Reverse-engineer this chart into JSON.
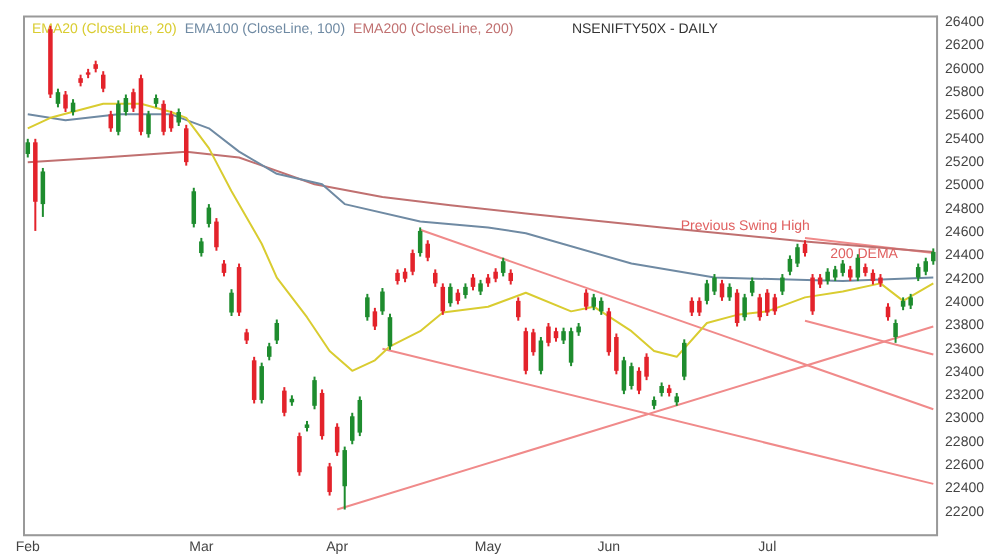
{
  "chart_data": {
    "type": "candlestick",
    "title": "NSENIFTY50X - DAILY",
    "legend": "top left",
    "grid": false,
    "categories": [
      "Feb",
      null,
      null,
      null,
      null,
      null,
      null,
      null,
      null,
      null,
      null,
      null,
      null,
      null,
      null,
      null,
      null,
      null,
      null,
      null,
      null,
      null,
      null,
      "Mar",
      null,
      null,
      null,
      null,
      null,
      null,
      null,
      null,
      null,
      null,
      null,
      null,
      null,
      null,
      null,
      null,
      null,
      "Apr",
      null,
      null,
      null,
      null,
      null,
      null,
      null,
      null,
      null,
      null,
      null,
      null,
      null,
      null,
      null,
      null,
      null,
      null,
      null,
      "May",
      null,
      null,
      null,
      null,
      null,
      null,
      null,
      null,
      null,
      null,
      null,
      null,
      null,
      null,
      null,
      "Jun",
      null,
      null,
      null,
      null,
      null,
      null,
      null,
      null,
      null,
      null,
      null,
      null,
      null,
      null,
      null,
      null,
      null,
      null,
      null,
      null,
      "Jul",
      null,
      null,
      null,
      null,
      null,
      null,
      null,
      null,
      null,
      null,
      null,
      null,
      null,
      null,
      null,
      null,
      null,
      null,
      null,
      null,
      null,
      null
    ],
    "ylim": [
      22000,
      26450
    ],
    "yticks": [
      22200,
      22400,
      22600,
      22800,
      23000,
      23200,
      23400,
      23600,
      23800,
      24000,
      24200,
      24400,
      24600,
      24800,
      25000,
      25200,
      25400,
      25600,
      25800,
      26000,
      26200,
      26400
    ],
    "ohlc": [
      [
        25270,
        25400,
        25240,
        25370
      ],
      [
        25370,
        25400,
        24610,
        24860
      ],
      [
        24840,
        25150,
        24730,
        25120
      ],
      [
        26340,
        26370,
        25750,
        25780
      ],
      [
        25700,
        25830,
        25670,
        25800
      ],
      [
        25780,
        25810,
        25630,
        25660
      ],
      [
        25630,
        25740,
        25600,
        25710
      ],
      [
        25920,
        25950,
        25850,
        25880
      ],
      [
        25970,
        26000,
        25920,
        25950
      ],
      [
        26040,
        26070,
        25970,
        26000
      ],
      [
        25950,
        25980,
        25800,
        25830
      ],
      [
        25610,
        25640,
        25460,
        25490
      ],
      [
        25460,
        25730,
        25430,
        25700
      ],
      [
        25630,
        25780,
        25600,
        25750
      ],
      [
        25800,
        25830,
        25630,
        25660
      ],
      [
        25920,
        25950,
        25430,
        25460
      ],
      [
        25440,
        25640,
        25410,
        25610
      ],
      [
        25700,
        25780,
        25670,
        25750
      ],
      [
        25700,
        25730,
        25430,
        25460
      ],
      [
        25610,
        25640,
        25460,
        25490
      ],
      [
        25540,
        25660,
        25510,
        25630
      ],
      [
        25490,
        25520,
        25170,
        25200
      ],
      [
        24670,
        24980,
        24640,
        24950
      ],
      [
        24420,
        24550,
        24390,
        24520
      ],
      [
        24670,
        24840,
        24640,
        24810
      ],
      [
        24690,
        24720,
        24440,
        24470
      ],
      [
        24330,
        24360,
        24220,
        24250
      ],
      [
        23910,
        24110,
        23880,
        24080
      ],
      [
        24300,
        24330,
        23880,
        23910
      ],
      [
        23740,
        23770,
        23640,
        23670
      ],
      [
        23500,
        23530,
        23130,
        23160
      ],
      [
        23160,
        23480,
        23130,
        23450
      ],
      [
        23530,
        23650,
        23500,
        23620
      ],
      [
        23670,
        23850,
        23640,
        23820
      ],
      [
        23240,
        23270,
        23020,
        23050
      ],
      [
        23140,
        23200,
        23110,
        23170
      ],
      [
        22850,
        22880,
        22510,
        22540
      ],
      [
        22920,
        22980,
        22890,
        22950
      ],
      [
        23110,
        23360,
        23080,
        23330
      ],
      [
        23220,
        23250,
        22820,
        22850
      ],
      [
        22590,
        22620,
        22340,
        22370
      ],
      [
        22930,
        22960,
        22680,
        22710
      ],
      [
        22420,
        22760,
        22220,
        22730
      ],
      [
        22810,
        23050,
        22780,
        23020
      ],
      [
        22880,
        23190,
        22850,
        23160
      ],
      [
        23870,
        24070,
        23840,
        24040
      ],
      [
        23920,
        23950,
        23760,
        23790
      ],
      [
        23920,
        24120,
        23890,
        24090
      ],
      [
        23620,
        23900,
        23590,
        23870
      ],
      [
        24250,
        24280,
        24150,
        24180
      ],
      [
        24260,
        24290,
        24170,
        24200
      ],
      [
        24420,
        24450,
        24230,
        24260
      ],
      [
        24420,
        24640,
        24390,
        24610
      ],
      [
        24500,
        24530,
        24350,
        24380
      ],
      [
        24250,
        24280,
        24130,
        24160
      ],
      [
        24130,
        24160,
        23890,
        23920
      ],
      [
        23990,
        24160,
        23960,
        24130
      ],
      [
        24080,
        24110,
        23980,
        24010
      ],
      [
        24060,
        24160,
        24030,
        24130
      ],
      [
        24210,
        24240,
        24100,
        24130
      ],
      [
        24090,
        24190,
        24060,
        24160
      ],
      [
        24210,
        24240,
        24130,
        24160
      ],
      [
        24260,
        24290,
        24170,
        24200
      ],
      [
        24250,
        24380,
        24220,
        24350
      ],
      [
        24250,
        24280,
        24150,
        24180
      ],
      [
        24010,
        24040,
        23840,
        23870
      ],
      [
        23750,
        23780,
        23380,
        23410
      ],
      [
        23740,
        23770,
        23540,
        23570
      ],
      [
        23410,
        23700,
        23380,
        23670
      ],
      [
        23790,
        23820,
        23620,
        23650
      ],
      [
        23750,
        23780,
        23660,
        23690
      ],
      [
        23670,
        23780,
        23640,
        23750
      ],
      [
        23480,
        23780,
        23450,
        23750
      ],
      [
        23740,
        23820,
        23710,
        23790
      ],
      [
        24080,
        24110,
        23930,
        23960
      ],
      [
        23960,
        24070,
        23930,
        24040
      ],
      [
        23920,
        24040,
        23890,
        24010
      ],
      [
        23920,
        23950,
        23540,
        23570
      ],
      [
        23700,
        23730,
        23380,
        23410
      ],
      [
        23240,
        23530,
        23210,
        23500
      ],
      [
        23280,
        23480,
        23250,
        23450
      ],
      [
        23410,
        23440,
        23210,
        23240
      ],
      [
        23530,
        23560,
        23330,
        23360
      ],
      [
        23110,
        23190,
        23080,
        23160
      ],
      [
        23220,
        23310,
        23190,
        23280
      ],
      [
        23260,
        23290,
        23190,
        23220
      ],
      [
        23140,
        23220,
        23110,
        23190
      ],
      [
        23360,
        23680,
        23330,
        23650
      ],
      [
        24010,
        24040,
        23880,
        23910
      ],
      [
        24010,
        24040,
        23880,
        23910
      ],
      [
        24010,
        24190,
        23980,
        24160
      ],
      [
        24090,
        24240,
        24060,
        24210
      ],
      [
        24160,
        24190,
        24010,
        24040
      ],
      [
        24040,
        24160,
        24010,
        24130
      ],
      [
        24080,
        24110,
        23790,
        23820
      ],
      [
        23870,
        24070,
        23840,
        24040
      ],
      [
        24080,
        24210,
        24050,
        24180
      ],
      [
        24040,
        24070,
        23840,
        23870
      ],
      [
        24080,
        24110,
        23880,
        23910
      ],
      [
        24040,
        24070,
        23890,
        23920
      ],
      [
        24090,
        24240,
        24060,
        24210
      ],
      [
        24260,
        24400,
        24230,
        24370
      ],
      [
        24330,
        24500,
        24300,
        24470
      ],
      [
        24500,
        24530,
        24390,
        24420
      ],
      [
        24210,
        24240,
        23890,
        23920
      ],
      [
        24210,
        24240,
        24120,
        24150
      ],
      [
        24180,
        24290,
        24150,
        24260
      ],
      [
        24210,
        24310,
        24180,
        24280
      ],
      [
        24250,
        24360,
        24220,
        24330
      ],
      [
        24280,
        24310,
        24180,
        24210
      ],
      [
        24210,
        24410,
        24180,
        24380
      ],
      [
        24300,
        24330,
        24220,
        24250
      ],
      [
        24250,
        24280,
        24150,
        24180
      ],
      [
        24210,
        24240,
        24130,
        24160
      ],
      [
        23960,
        23990,
        23840,
        23870
      ],
      [
        23700,
        23850,
        23650,
        23820
      ],
      [
        23960,
        24040,
        23930,
        24010
      ],
      [
        23970,
        24070,
        23940,
        24040
      ],
      [
        24210,
        24330,
        24180,
        24300
      ],
      [
        24260,
        24380,
        24230,
        24350
      ],
      [
        24350,
        24460,
        24320,
        24430
      ]
    ],
    "series": [
      {
        "name": "EMA20 (CloseLine, 20)",
        "type": "line",
        "color": "#d9cc30",
        "values": [
          25490,
          null,
          null,
          25580,
          null,
          null,
          null,
          null,
          null,
          null,
          25700,
          null,
          null,
          null,
          null,
          25700,
          null,
          null,
          null,
          25630,
          null,
          25580,
          null,
          null,
          25320,
          null,
          null,
          24950,
          null,
          null,
          null,
          24500,
          null,
          24210,
          null,
          null,
          null,
          23870,
          null,
          null,
          23580,
          null,
          null,
          23410,
          null,
          null,
          23500,
          null,
          23620,
          null,
          null,
          null,
          23750,
          null,
          null,
          23910,
          null,
          null,
          null,
          null,
          null,
          23960,
          null,
          null,
          null,
          null,
          24080,
          null,
          null,
          null,
          null,
          null,
          23920,
          null,
          null,
          23960,
          null,
          null,
          null,
          null,
          23750,
          null,
          null,
          23580,
          null,
          null,
          23530,
          null,
          null,
          null,
          23820,
          null,
          null,
          null,
          23890,
          null,
          null,
          null,
          23920,
          null,
          null,
          null,
          null,
          24040,
          null,
          null,
          null,
          null,
          24090,
          null,
          null,
          null,
          null,
          24160,
          null,
          null,
          24010,
          null,
          null,
          null,
          24160
        ]
      },
      {
        "name": "EMA100 (CloseLine, 100)",
        "type": "line",
        "color": "#6f8aa3",
        "values": [
          25610,
          null,
          null,
          null,
          null,
          25560,
          null,
          null,
          null,
          null,
          null,
          null,
          25610,
          null,
          null,
          null,
          null,
          null,
          null,
          25610,
          null,
          null,
          null,
          null,
          25490,
          null,
          null,
          null,
          25290,
          null,
          null,
          null,
          null,
          25100,
          null,
          null,
          null,
          null,
          null,
          25010,
          null,
          null,
          24840,
          null,
          null,
          null,
          null,
          null,
          null,
          null,
          null,
          null,
          24690,
          null,
          null,
          null,
          null,
          null,
          null,
          null,
          null,
          24640,
          null,
          null,
          null,
          null,
          24590,
          null,
          null,
          null,
          null,
          null,
          null,
          null,
          null,
          null,
          null,
          null,
          null,
          null,
          24330,
          null,
          null,
          null,
          null,
          null,
          null,
          null,
          null,
          null,
          null,
          24210,
          null,
          null,
          null,
          null,
          null,
          null,
          null,
          null,
          null,
          null,
          null,
          null,
          null,
          null,
          null,
          null,
          24180,
          null,
          null,
          null,
          null,
          null,
          null,
          null,
          null,
          null,
          null,
          null,
          24210
        ]
      },
      {
        "name": "EMA200 (CloseLine, 200)",
        "type": "line",
        "color": "#c07070",
        "values": [
          25200,
          null,
          null,
          null,
          null,
          null,
          null,
          null,
          null,
          null,
          25240,
          null,
          null,
          null,
          null,
          null,
          null,
          null,
          null,
          null,
          null,
          25290,
          null,
          null,
          null,
          null,
          null,
          null,
          25240,
          null,
          null,
          null,
          null,
          null,
          null,
          null,
          null,
          null,
          25010,
          null,
          null,
          null,
          null,
          null,
          null,
          null,
          null,
          24900,
          null,
          null,
          null,
          null,
          null,
          null,
          null,
          null,
          24830,
          null,
          null,
          null,
          null,
          null,
          null,
          null,
          null,
          null,
          24760,
          null,
          null,
          null,
          null,
          null,
          null,
          null,
          null,
          null,
          null,
          null,
          null,
          null,
          null,
          null,
          null,
          null,
          24640,
          null,
          null,
          null,
          null,
          null,
          null,
          null,
          null,
          null,
          null,
          null,
          null,
          null,
          null,
          null,
          null,
          null,
          null,
          24520,
          null,
          null,
          null,
          null,
          null,
          null,
          null,
          null,
          null,
          null,
          null,
          null,
          null,
          null,
          null,
          null,
          24430
        ]
      },
      {
        "type": "line",
        "color": "#f08a8a",
        "values": [
          null,
          null,
          null,
          null,
          null,
          null,
          null,
          null,
          null,
          null,
          null,
          null,
          null,
          null,
          null,
          null,
          null,
          null,
          null,
          null,
          null,
          null,
          null,
          null,
          null,
          null,
          null,
          null,
          null,
          null,
          null,
          null,
          null,
          null,
          null,
          null,
          null,
          null,
          null,
          null,
          null,
          null,
          null,
          null,
          null,
          null,
          null,
          null,
          null,
          null,
          null,
          null,
          24620,
          null,
          null,
          null,
          null,
          null,
          null,
          null,
          null,
          null,
          null,
          null,
          null,
          null,
          null,
          null,
          null,
          null,
          null,
          null,
          null,
          null,
          null,
          null,
          null,
          null,
          null,
          null,
          null,
          null,
          null,
          null,
          null,
          null,
          null,
          null,
          null,
          null,
          null,
          null,
          null,
          null,
          null,
          null,
          null,
          null,
          null,
          null,
          null,
          null,
          null,
          null,
          null,
          null,
          null,
          null,
          null,
          null,
          null,
          null,
          null,
          null,
          null,
          null,
          null,
          null,
          null,
          null,
          23080
        ]
      },
      {
        "type": "line",
        "color": "#f08a8a",
        "values": [
          null,
          null,
          null,
          null,
          null,
          null,
          null,
          null,
          null,
          null,
          null,
          null,
          null,
          null,
          null,
          null,
          null,
          null,
          null,
          null,
          null,
          null,
          null,
          null,
          null,
          null,
          null,
          null,
          null,
          null,
          null,
          null,
          null,
          null,
          null,
          null,
          null,
          null,
          null,
          null,
          null,
          null,
          null,
          null,
          null,
          null,
          null,
          23600,
          null,
          null,
          null,
          null,
          null,
          null,
          null,
          null,
          null,
          null,
          null,
          null,
          null,
          null,
          null,
          null,
          null,
          null,
          null,
          null,
          null,
          null,
          null,
          null,
          null,
          null,
          null,
          null,
          null,
          null,
          null,
          null,
          null,
          null,
          null,
          null,
          null,
          null,
          null,
          null,
          null,
          null,
          null,
          null,
          null,
          null,
          null,
          null,
          null,
          null,
          null,
          null,
          null,
          null,
          null,
          null,
          null,
          null,
          null,
          null,
          null,
          null,
          null,
          null,
          null,
          null,
          null,
          null,
          null,
          null,
          null,
          null,
          22440
        ]
      },
      {
        "type": "line",
        "color": "#f08a8a",
        "values": [
          null,
          null,
          null,
          null,
          null,
          null,
          null,
          null,
          null,
          null,
          null,
          null,
          null,
          null,
          null,
          null,
          null,
          null,
          null,
          null,
          null,
          null,
          null,
          null,
          null,
          null,
          null,
          null,
          null,
          null,
          null,
          null,
          null,
          null,
          null,
          null,
          null,
          null,
          null,
          null,
          null,
          22220,
          null,
          null,
          null,
          null,
          null,
          null,
          null,
          null,
          null,
          null,
          null,
          null,
          null,
          null,
          null,
          null,
          null,
          null,
          null,
          null,
          null,
          null,
          null,
          null,
          null,
          null,
          null,
          null,
          null,
          null,
          null,
          null,
          null,
          null,
          null,
          null,
          null,
          null,
          null,
          null,
          null,
          null,
          null,
          null,
          null,
          null,
          null,
          null,
          null,
          null,
          null,
          null,
          null,
          null,
          null,
          null,
          null,
          null,
          null,
          null,
          null,
          null,
          null,
          null,
          null,
          null,
          null,
          null,
          null,
          null,
          null,
          null,
          null,
          null,
          null,
          null,
          null,
          null,
          23790
        ]
      },
      {
        "type": "line",
        "color": "#f08a8a",
        "values": [
          null,
          null,
          null,
          null,
          null,
          null,
          null,
          null,
          null,
          null,
          null,
          null,
          null,
          null,
          null,
          null,
          null,
          null,
          null,
          null,
          null,
          null,
          null,
          null,
          null,
          null,
          null,
          null,
          null,
          null,
          null,
          null,
          null,
          null,
          null,
          null,
          null,
          null,
          null,
          null,
          null,
          null,
          null,
          null,
          null,
          null,
          null,
          null,
          null,
          null,
          null,
          null,
          null,
          null,
          null,
          null,
          null,
          null,
          null,
          null,
          null,
          null,
          null,
          null,
          null,
          null,
          null,
          null,
          null,
          null,
          null,
          null,
          null,
          null,
          null,
          null,
          null,
          null,
          null,
          null,
          null,
          null,
          null,
          null,
          null,
          null,
          null,
          null,
          null,
          null,
          null,
          null,
          null,
          null,
          null,
          null,
          null,
          null,
          null,
          null,
          null,
          null,
          null,
          23840,
          null,
          null,
          null,
          null,
          null,
          null,
          null,
          null,
          null,
          null,
          null,
          null,
          null,
          null,
          null,
          null,
          23550
        ]
      },
      {
        "type": "line",
        "color": "#f08a8a",
        "values": [
          null,
          null,
          null,
          null,
          null,
          null,
          null,
          null,
          null,
          null,
          null,
          null,
          null,
          null,
          null,
          null,
          null,
          null,
          null,
          null,
          null,
          null,
          null,
          null,
          null,
          null,
          null,
          null,
          null,
          null,
          null,
          null,
          null,
          null,
          null,
          null,
          null,
          null,
          null,
          null,
          null,
          null,
          null,
          null,
          null,
          null,
          null,
          null,
          null,
          null,
          null,
          null,
          null,
          null,
          null,
          null,
          null,
          null,
          null,
          null,
          null,
          null,
          null,
          null,
          null,
          null,
          null,
          null,
          null,
          null,
          null,
          null,
          null,
          null,
          null,
          null,
          null,
          null,
          null,
          null,
          null,
          null,
          null,
          null,
          null,
          null,
          null,
          null,
          null,
          null,
          null,
          null,
          null,
          null,
          null,
          null,
          null,
          null,
          null,
          null,
          null,
          null,
          null,
          24550,
          null,
          null,
          null,
          null,
          null,
          null,
          null,
          null,
          null,
          null,
          null,
          null,
          null,
          null,
          null,
          null,
          24420
        ]
      }
    ],
    "annotations": [
      "Previous Swing High",
      "200 DEMA"
    ]
  }
}
